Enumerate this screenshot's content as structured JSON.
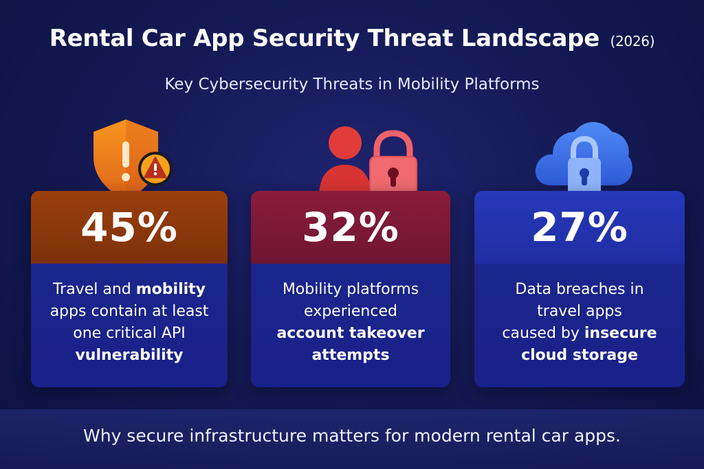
{
  "header": {
    "title": "Rental Car App Security Threat Landscape",
    "year": "(2026)",
    "subtitle": "Key Cybersecurity Threats in Mobility Platforms"
  },
  "cards": [
    {
      "stat": "45%",
      "icon": "shield-warning-icon",
      "accent": "#e8741a",
      "lines": [
        {
          "plain": "Travel and ",
          "bold": "mobility"
        },
        {
          "plain": "apps contain at least",
          "bold": ""
        },
        {
          "plain": "one critical API",
          "bold": ""
        },
        {
          "plain": "",
          "bold": "vulnerability"
        }
      ]
    },
    {
      "stat": "32%",
      "icon": "user-lock-icon",
      "accent": "#e03a4e",
      "lines": [
        {
          "plain": "Mobility platforms",
          "bold": ""
        },
        {
          "plain": "experienced",
          "bold": ""
        },
        {
          "plain": "",
          "bold": "account takeover"
        },
        {
          "plain": "",
          "bold": "attempts"
        }
      ]
    },
    {
      "stat": "27%",
      "icon": "cloud-lock-icon",
      "accent": "#3a6bea",
      "lines": [
        {
          "plain": "Data breaches in",
          "bold": ""
        },
        {
          "plain": "travel apps",
          "bold": ""
        },
        {
          "plain": "caused by ",
          "bold": "insecure"
        },
        {
          "plain": "",
          "bold": "cloud storage"
        }
      ]
    }
  ],
  "footer": {
    "text": "Why secure infrastructure matters for modern rental car apps."
  }
}
